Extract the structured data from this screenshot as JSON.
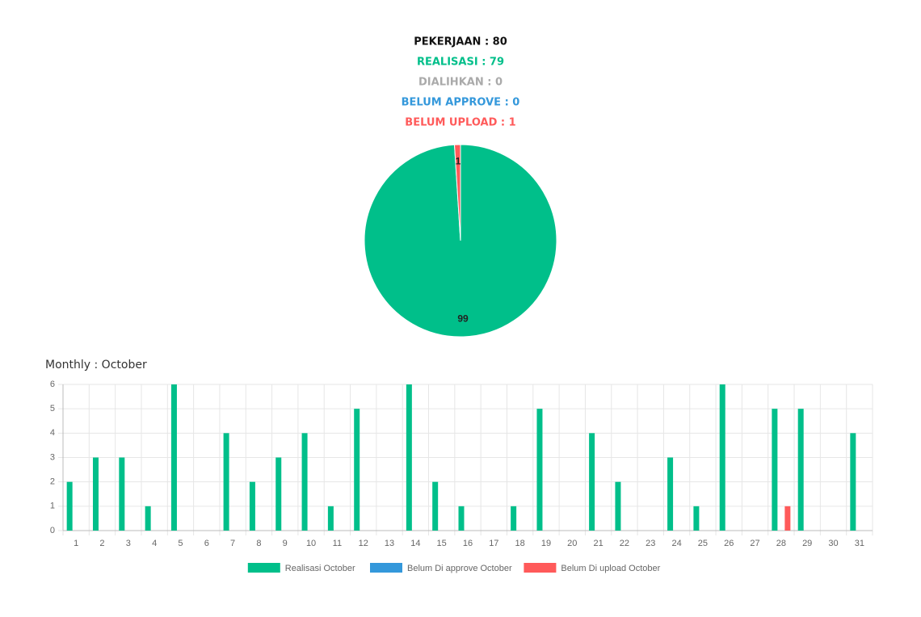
{
  "summary": [
    {
      "text": "PEKERJAAN : 80",
      "color": "#111111"
    },
    {
      "text": "REALISASI : 79",
      "color": "#00bf8a"
    },
    {
      "text": "DIALIHKAN : 0",
      "color": "#aaaaaa"
    },
    {
      "text": "BELUM APPROVE : 0",
      "color": "#3498db"
    },
    {
      "text": "BELUM UPLOAD : 1",
      "color": "#ff5a5a"
    }
  ],
  "chart_data": [
    {
      "type": "pie",
      "values": [
        99,
        1
      ],
      "colors": [
        "#00bf8a",
        "#ff5a5a"
      ]
    },
    {
      "type": "bar",
      "title": "Monthly : October",
      "categories": [
        "1",
        "2",
        "3",
        "4",
        "5",
        "6",
        "7",
        "8",
        "9",
        "10",
        "11",
        "12",
        "13",
        "14",
        "15",
        "16",
        "17",
        "18",
        "19",
        "20",
        "21",
        "22",
        "23",
        "24",
        "25",
        "26",
        "27",
        "28",
        "29",
        "30",
        "31"
      ],
      "series": [
        {
          "name": "Realisasi October",
          "color": "#00bf8a",
          "values": [
            2,
            3,
            3,
            1,
            6,
            0,
            4,
            2,
            3,
            4,
            1,
            5,
            0,
            6,
            2,
            1,
            0,
            1,
            5,
            0,
            4,
            2,
            0,
            3,
            1,
            6,
            0,
            5,
            5,
            0,
            4
          ]
        },
        {
          "name": "Belum Di approve October",
          "color": "#3498db",
          "values": [
            0,
            0,
            0,
            0,
            0,
            0,
            0,
            0,
            0,
            0,
            0,
            0,
            0,
            0,
            0,
            0,
            0,
            0,
            0,
            0,
            0,
            0,
            0,
            0,
            0,
            0,
            0,
            0,
            0,
            0,
            0
          ]
        },
        {
          "name": "Belum Di upload October",
          "color": "#ff5a5a",
          "values": [
            0,
            0,
            0,
            0,
            0,
            0,
            0,
            0,
            0,
            0,
            0,
            0,
            0,
            0,
            0,
            0,
            0,
            0,
            0,
            0,
            0,
            0,
            0,
            0,
            0,
            0,
            0,
            1,
            0,
            0,
            0
          ]
        }
      ],
      "ylim": [
        0,
        6
      ],
      "yticks": [
        0,
        1,
        2,
        3,
        4,
        5,
        6
      ],
      "grid": true,
      "legend": "bottom"
    }
  ]
}
